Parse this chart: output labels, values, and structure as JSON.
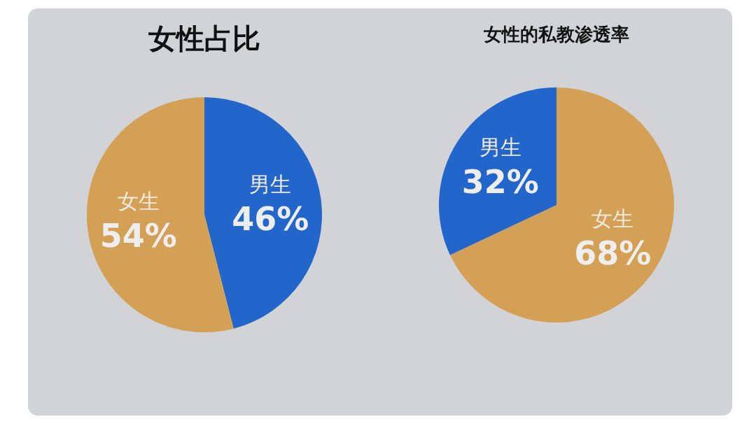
{
  "chart_data": [
    {
      "type": "pie",
      "title": "女性占比",
      "categories": [
        "男生",
        "女生"
      ],
      "values": [
        46,
        54
      ],
      "colors": [
        "#2266cc",
        "#d4a055"
      ],
      "value_labels": [
        "46%",
        "54%"
      ]
    },
    {
      "type": "pie",
      "title": "女性的私教渗透率",
      "categories": [
        "女生",
        "男生"
      ],
      "values": [
        68,
        32
      ],
      "colors": [
        "#d4a055",
        "#2266cc"
      ],
      "value_labels": [
        "68%",
        "32%"
      ]
    }
  ]
}
